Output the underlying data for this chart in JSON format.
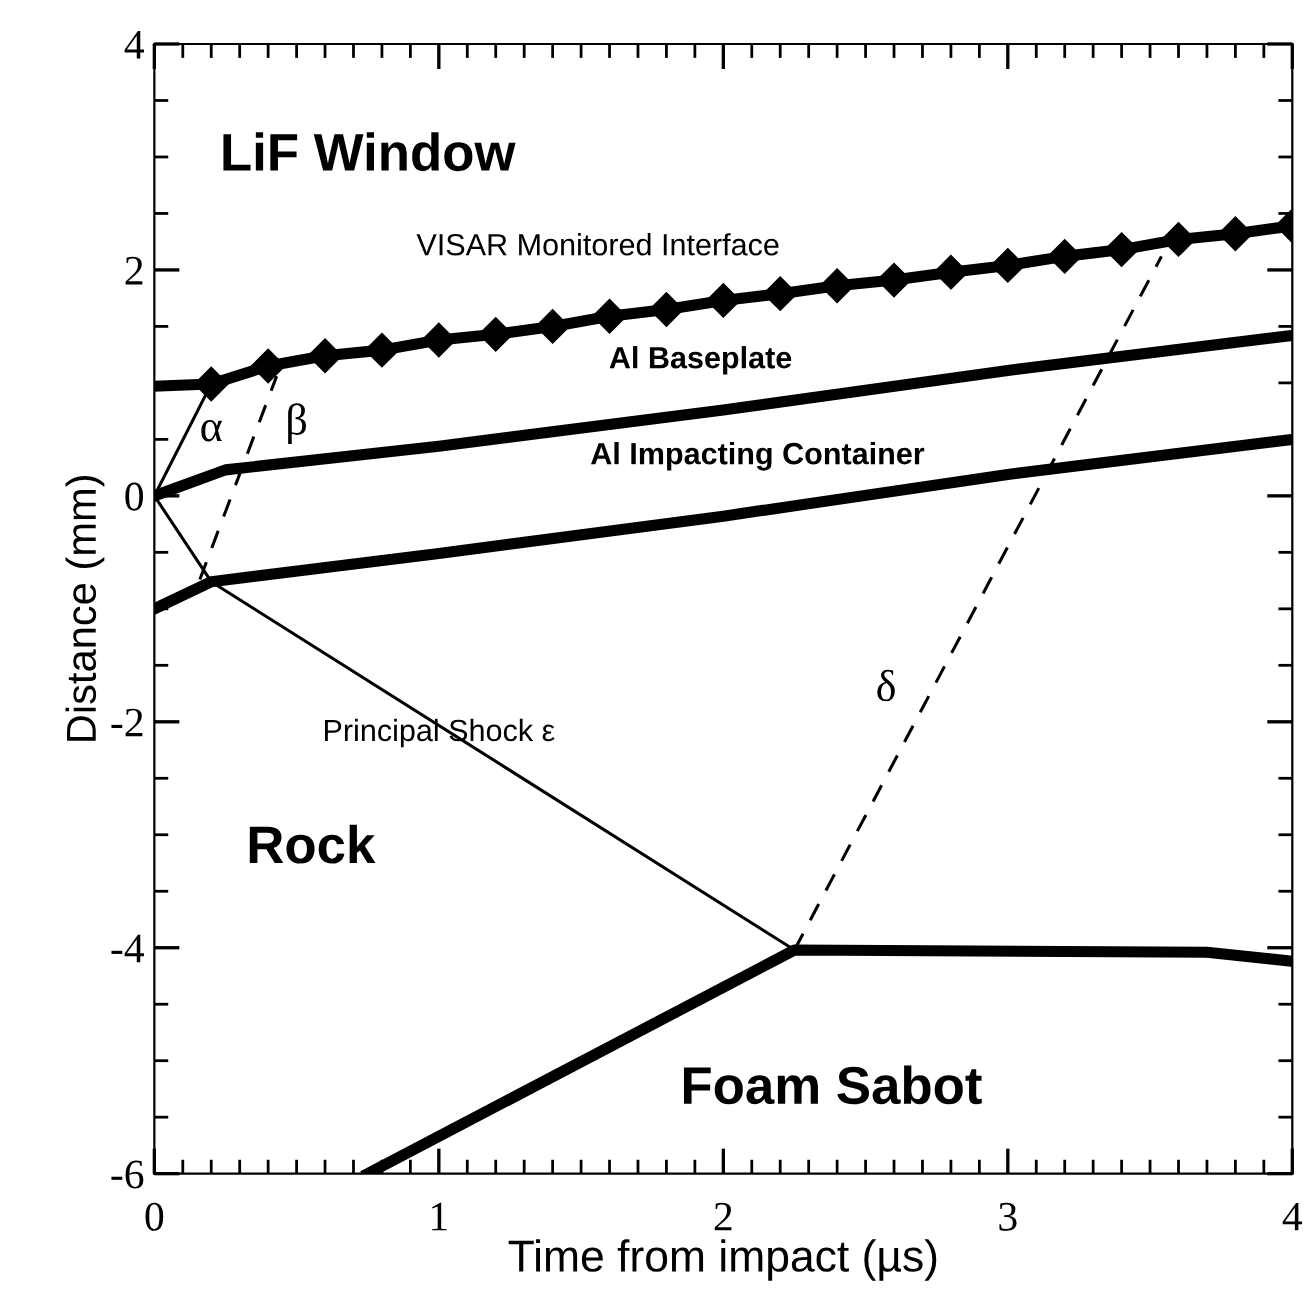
{
  "chart_data": {
    "type": "line",
    "xlabel": "Time from impact (µs)",
    "ylabel": "Distance (mm)",
    "xlim": [
      0,
      4
    ],
    "ylim": [
      -6,
      4
    ],
    "xticks": [
      0,
      1,
      2,
      3,
      4
    ],
    "yticks": [
      -6,
      -4,
      -2,
      0,
      2,
      4
    ],
    "grid": false,
    "legend": false,
    "series": [
      {
        "color": "#000000",
        "x": [
          0,
          0.2
        ],
        "values": [
          0.97,
          0.99
        ]
      },
      {
        "color": "#000000",
        "marker": "diamond",
        "x": [
          0.2,
          0.4,
          0.6,
          0.8,
          1.0,
          1.2,
          1.4,
          1.6,
          1.8,
          2.0,
          2.2,
          2.4,
          2.6,
          2.8,
          3.0,
          3.2,
          3.4,
          3.6,
          3.8,
          4.0
        ],
        "values": [
          0.99,
          1.15,
          1.24,
          1.29,
          1.38,
          1.43,
          1.5,
          1.59,
          1.65,
          1.73,
          1.79,
          1.86,
          1.91,
          1.98,
          2.04,
          2.12,
          2.18,
          2.27,
          2.32,
          2.39
        ]
      },
      {
        "color": "#000000",
        "x": [
          0,
          0.25,
          1,
          2,
          3,
          4
        ],
        "values": [
          0,
          0.23,
          0.44,
          0.76,
          1.11,
          1.42
        ]
      },
      {
        "color": "#000000",
        "x": [
          0,
          0.2,
          1,
          2,
          3,
          4
        ],
        "values": [
          -1.0,
          -0.76,
          -0.51,
          -0.18,
          0.19,
          0.5
        ]
      },
      {
        "color": "#000000",
        "x": [
          0.75,
          2.25,
          3.7,
          4
        ],
        "values": [
          -6,
          -4.02,
          -4.04,
          -4.12
        ]
      },
      {
        "color": "#000000",
        "x": [
          0,
          0.2,
          2.25
        ],
        "values": [
          0,
          -0.76,
          -4.02
        ]
      },
      {
        "color": "#000000",
        "x": [
          0,
          0.2
        ],
        "values": [
          0,
          0.99
        ]
      },
      {
        "color": "#000000",
        "line_style": "dashed",
        "x": [
          0.16,
          0.43
        ],
        "values": [
          -0.74,
          1.06
        ]
      },
      {
        "color": "#000000",
        "line_style": "dashed",
        "x": [
          2.25,
          3.54
        ],
        "values": [
          -4.02,
          2.12
        ]
      }
    ],
    "annotations": [
      "LiF Window",
      "Rock",
      "Foam Sabot",
      "VISAR Monitored Interface",
      "Al Baseplate",
      "Al Impacting Container",
      "Principal Shock ε",
      "α",
      "β",
      "δ"
    ]
  }
}
